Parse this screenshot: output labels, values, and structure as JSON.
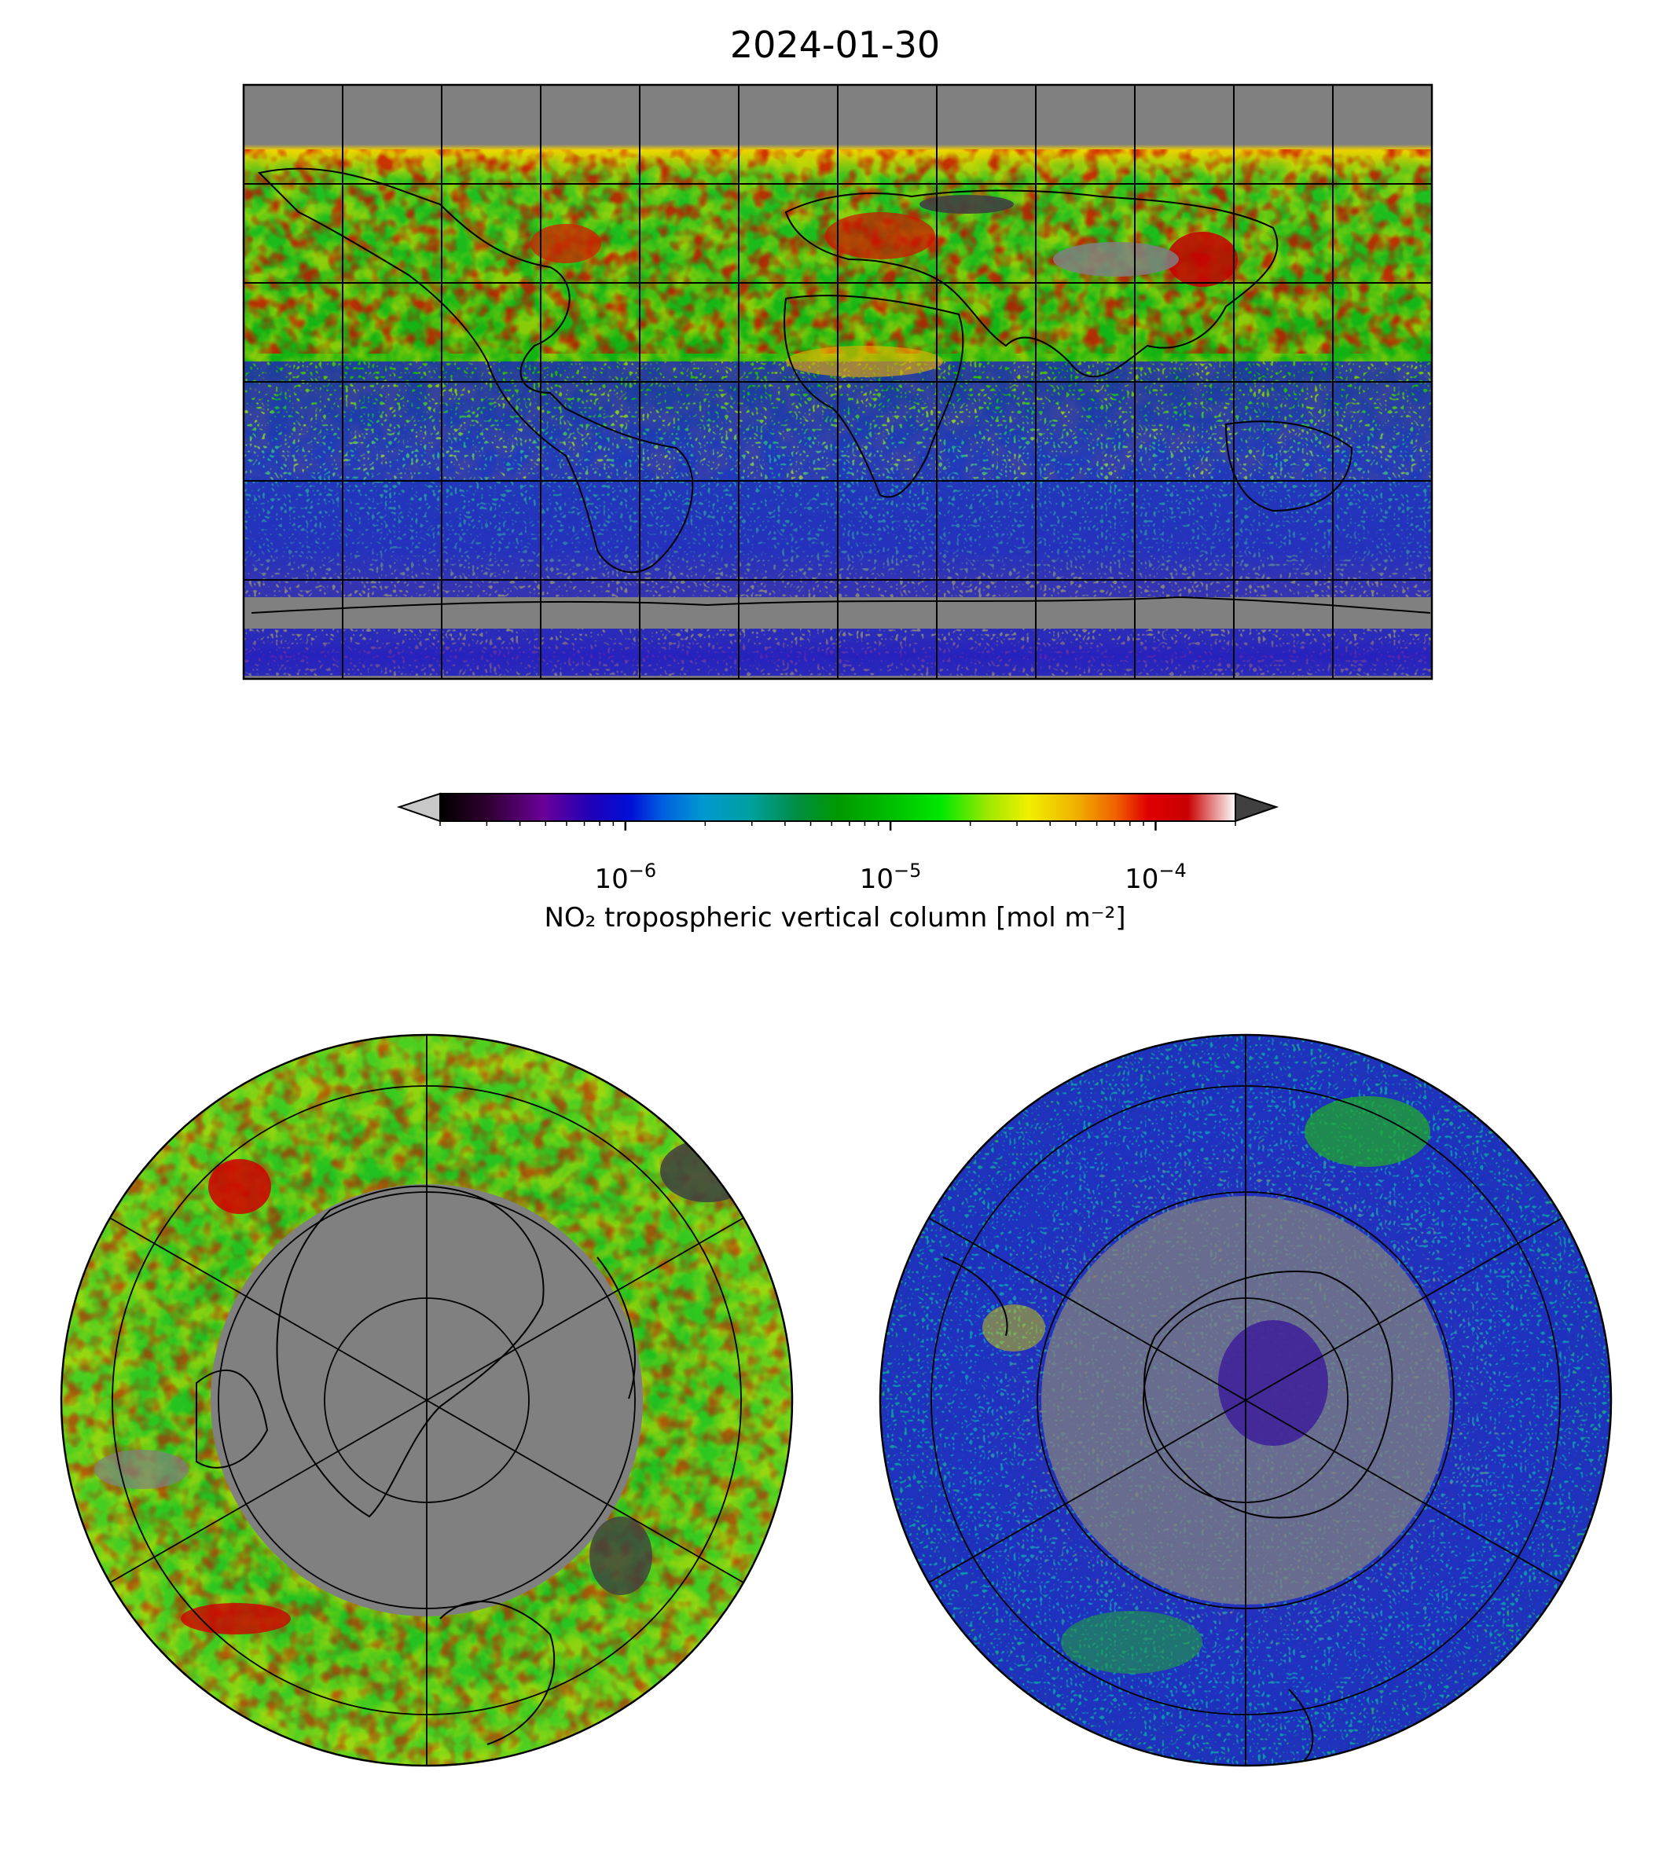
{
  "title": "2024-01-30",
  "colorbar": {
    "label": "NO₂ tropospheric vertical column [mol m⁻²]",
    "scale": "log",
    "range": [
      2e-07,
      0.0002
    ],
    "extend": "both",
    "ticks": [
      {
        "base": "10",
        "exp": "−6",
        "value": 1e-06
      },
      {
        "base": "10",
        "exp": "−5",
        "value": 1e-05
      },
      {
        "base": "10",
        "exp": "−4",
        "value": 0.0001
      }
    ],
    "colors": [
      "#000000",
      "#2a0030",
      "#5a0090",
      "#3a00b0",
      "#0000d0",
      "#0050e0",
      "#0090d0",
      "#00a0a0",
      "#009060",
      "#00a000",
      "#20c000",
      "#00e000",
      "#90e000",
      "#f0f000",
      "#f0c000",
      "#f08000",
      "#e00000",
      "#c80000",
      "#ffffff"
    ],
    "under_color": "#c8c8c8",
    "over_color": "#404040"
  },
  "maps": {
    "global": {
      "projection": "equirectangular",
      "missing_color": "#808080"
    },
    "north_polar": {
      "projection": "north-polar-stereographic",
      "missing_color": "#808080"
    },
    "south_polar": {
      "projection": "south-polar-stereographic",
      "missing_color": "#808080"
    }
  }
}
